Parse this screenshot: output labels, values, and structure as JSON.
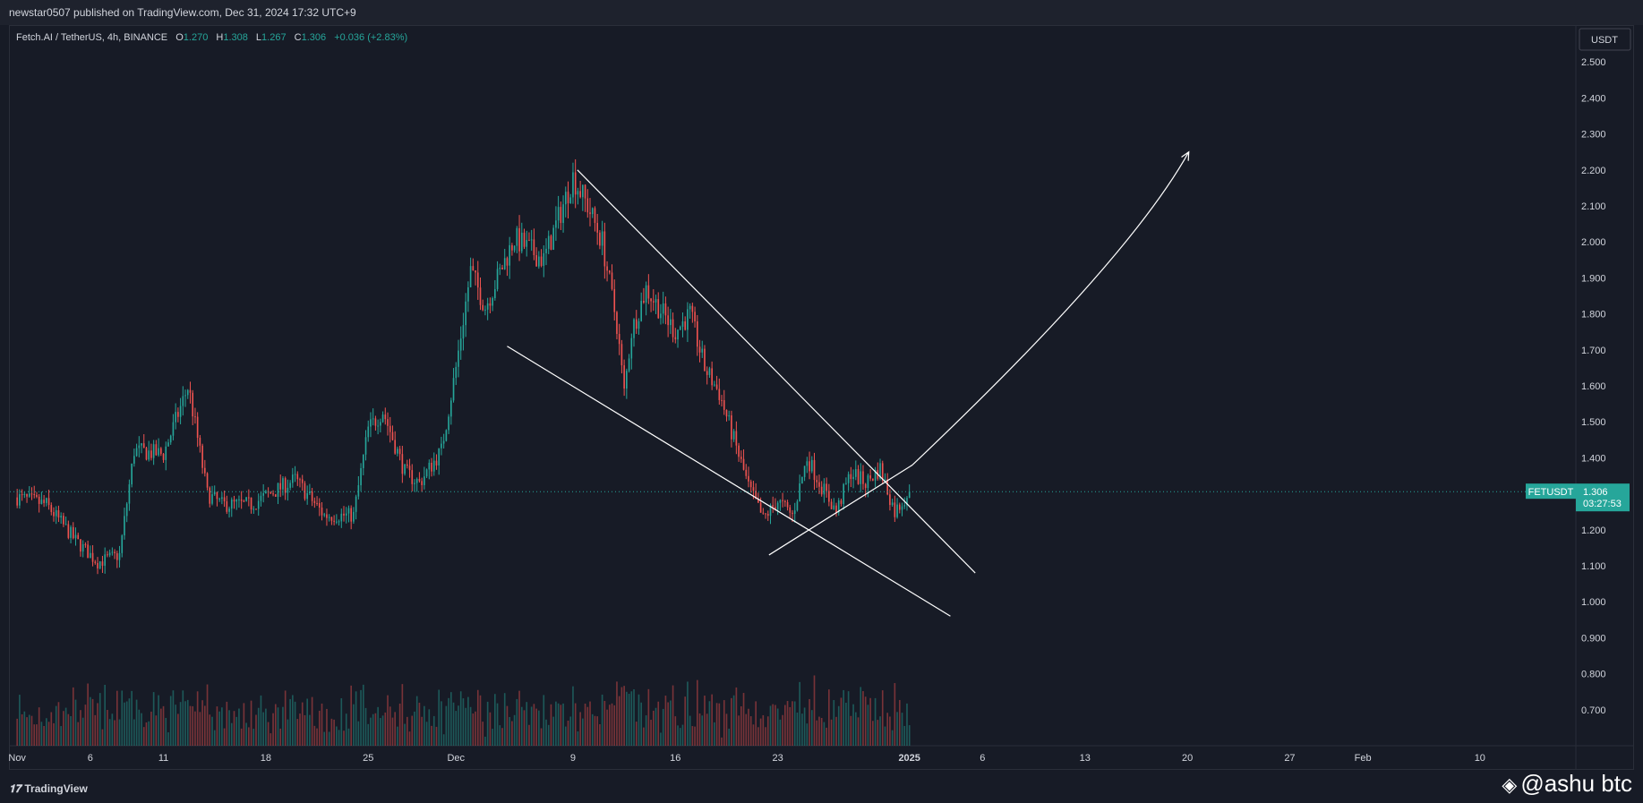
{
  "header": {
    "publish_text": "newstar0507 published on TradingView.com, Dec 31, 2024 17:32 UTC+9"
  },
  "legend": {
    "symbol": "Fetch.AI / TetherUS, 4h, BINANCE",
    "o_label": "O",
    "o_value": "1.270",
    "h_label": "H",
    "h_value": "1.308",
    "l_label": "L",
    "l_value": "1.267",
    "c_label": "C",
    "c_value": "1.306",
    "change": "+0.036 (+2.83%)"
  },
  "footer": {
    "tradingview_label": "TradingView",
    "watermark": "@ashu btc"
  },
  "colors": {
    "up": "#26a69a",
    "down": "#ef5350",
    "background": "#171b26",
    "text": "#d1d4dc",
    "drawing": "#ffffff"
  },
  "chart_data": {
    "type": "candlestick",
    "currency_label": "USDT",
    "ylim": [
      0.6,
      2.6
    ],
    "y_ticks": [
      "2.500",
      "2.400",
      "2.300",
      "2.200",
      "2.100",
      "2.000",
      "1.900",
      "1.800",
      "1.700",
      "1.600",
      "1.500",
      "1.400",
      "1.300",
      "1.200",
      "1.100",
      "1.000",
      "0.900",
      "0.800",
      "0.700"
    ],
    "x_ticks": [
      "Nov",
      "6",
      "11",
      "18",
      "25",
      "Dec",
      "9",
      "16",
      "23",
      "2025",
      "6",
      "13",
      "20",
      "27",
      "Feb",
      "10"
    ],
    "x_tick_days": [
      0,
      5,
      10,
      17,
      24,
      30,
      38,
      45,
      52,
      61,
      66,
      73,
      80,
      87,
      92,
      100
    ],
    "x_range_days": [
      -0.5,
      106.5
    ],
    "last_price": {
      "symbol": "FETUSDT",
      "price": "1.306",
      "countdown": "03:27:53",
      "value": 1.306
    },
    "price_path_days": [
      0,
      2,
      4,
      5.5,
      7,
      8,
      10,
      11.7,
      13,
      14,
      16,
      19,
      21,
      23,
      24,
      25,
      26.5,
      27.5,
      29,
      30,
      31,
      32,
      34,
      36,
      38,
      39,
      40,
      41,
      41.5,
      42,
      43,
      45,
      46,
      47,
      48,
      50,
      51,
      52,
      53,
      54,
      55,
      56,
      57,
      58,
      59,
      60,
      61
    ],
    "price_path_values": [
      1.29,
      1.27,
      1.17,
      1.11,
      1.13,
      1.42,
      1.41,
      1.6,
      1.3,
      1.27,
      1.27,
      1.34,
      1.24,
      1.24,
      1.48,
      1.53,
      1.36,
      1.33,
      1.42,
      1.65,
      1.92,
      1.82,
      2.01,
      1.95,
      2.18,
      2.1,
      2.0,
      1.77,
      1.58,
      1.75,
      1.87,
      1.75,
      1.8,
      1.65,
      1.58,
      1.32,
      1.23,
      1.28,
      1.24,
      1.4,
      1.32,
      1.25,
      1.36,
      1.33,
      1.37,
      1.25,
      1.306
    ],
    "drawings": [
      {
        "name": "upper-trendline",
        "from": [
          38.3,
          2.2
        ],
        "to": [
          65.5,
          1.08
        ]
      },
      {
        "name": "lower-trendline",
        "from": [
          33.5,
          1.71
        ],
        "to": [
          63.8,
          0.96
        ]
      },
      {
        "name": "support-trendline",
        "from": [
          51.4,
          1.13
        ],
        "to": [
          61.2,
          1.38
        ]
      },
      {
        "name": "projection-arc",
        "from": [
          61.2,
          1.38
        ],
        "control": [
          76,
          1.95
        ],
        "to": [
          80.1,
          2.25
        ]
      }
    ]
  }
}
